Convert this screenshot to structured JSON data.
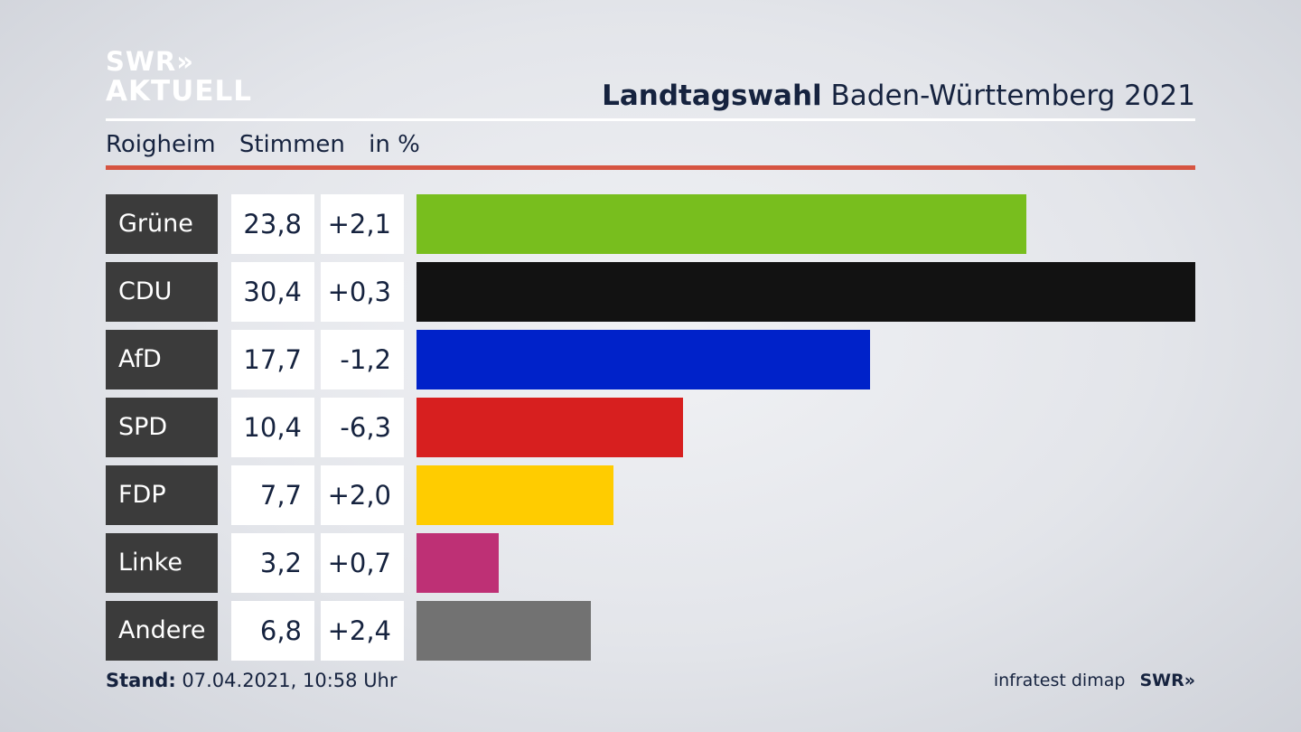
{
  "logo": {
    "line1": "SWR»",
    "line2": "AKTUELL"
  },
  "header": {
    "title_bold": "Landtagswahl",
    "title_rest": "Baden-Württemberg 2021"
  },
  "subheader": {
    "place": "Roigheim",
    "metric": "Stimmen",
    "unit": "in %"
  },
  "chart_data": {
    "type": "bar",
    "orientation": "horizontal",
    "categories": [
      "Grüne",
      "CDU",
      "AfD",
      "SPD",
      "FDP",
      "Linke",
      "Andere"
    ],
    "values": [
      23.8,
      30.4,
      17.7,
      10.4,
      7.7,
      3.2,
      6.8
    ],
    "value_labels": [
      "23,8",
      "30,4",
      "17,7",
      "10,4",
      "7,7",
      "3,2",
      "6,8"
    ],
    "change_labels": [
      "+2,1",
      "+0,3",
      "-1,2",
      "-6,3",
      "+2,0",
      "+0,7",
      "+2,4"
    ],
    "changes": [
      2.1,
      0.3,
      -1.2,
      -6.3,
      2.0,
      0.7,
      2.4
    ],
    "colors": [
      "#78be1e",
      "#121212",
      "#0022c9",
      "#d71f1f",
      "#ffcc00",
      "#be3075",
      "#727272"
    ],
    "xlim": [
      0,
      30.4
    ]
  },
  "footer": {
    "stand_label": "Stand:",
    "stand_value": "07.04.2021, 10:58 Uhr"
  },
  "source": {
    "label": "infratest dimap",
    "logo": "SWR»"
  }
}
